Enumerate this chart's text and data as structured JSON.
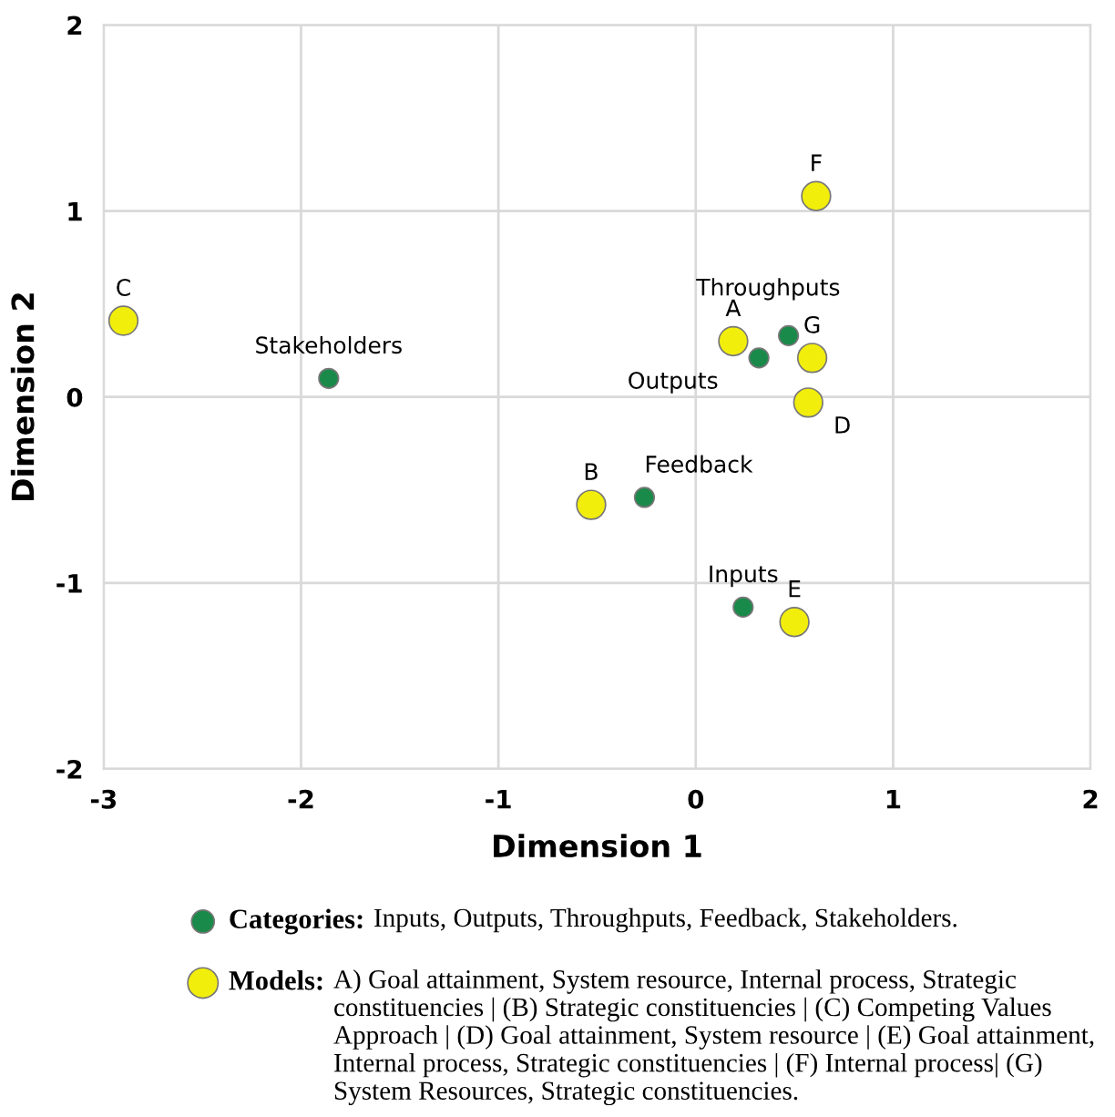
{
  "chart_data": {
    "type": "scatter",
    "xlabel": "Dimension 1",
    "ylabel": "Dimension 2",
    "xlim": [
      -3,
      2
    ],
    "ylim": [
      -2,
      2
    ],
    "xticks": [
      -3,
      -2,
      -1,
      0,
      1,
      2
    ],
    "yticks": [
      -2,
      -1,
      0,
      1,
      2
    ],
    "grid": true,
    "marker": "circle",
    "legend": "bottom",
    "series": [
      {
        "name": "Categories:",
        "color": "#1a8a4a",
        "x": [
          0.24,
          0.32,
          0.47,
          -0.26,
          -1.86
        ],
        "values": [
          -1.13,
          0.21,
          0.33,
          -0.54,
          0.1
        ]
      },
      {
        "name": "Models:",
        "color": "#f2ee0c",
        "x": [
          0.19,
          -0.53,
          -2.9,
          0.57,
          0.5,
          0.61,
          0.59
        ],
        "values": [
          0.3,
          -0.58,
          0.41,
          -0.03,
          -1.21,
          1.08,
          0.21
        ]
      }
    ],
    "annotations": [
      {
        "text": "Inputs",
        "x": 0.24,
        "y": -1.13
      },
      {
        "text": "Outputs",
        "x": 0.32,
        "y": 0.21
      },
      {
        "text": "Throughputs",
        "x": 0.47,
        "y": 0.33
      },
      {
        "text": "Feedback",
        "x": -0.26,
        "y": -0.54
      },
      {
        "text": "Stakeholders",
        "x": -1.86,
        "y": 0.1
      },
      {
        "text": "A",
        "x": 0.19,
        "y": 0.3
      },
      {
        "text": "B",
        "x": -0.53,
        "y": -0.58
      },
      {
        "text": "C",
        "x": -2.9,
        "y": 0.41
      },
      {
        "text": "D",
        "x": 0.57,
        "y": -0.03
      },
      {
        "text": "E",
        "x": 0.5,
        "y": -1.21
      },
      {
        "text": "F",
        "x": 0.61,
        "y": 1.08
      },
      {
        "text": "G",
        "x": 0.59,
        "y": 0.21
      },
      "Inputs, Outputs, Throughputs, Feedback, Stakeholders.",
      "A) Goal attainment, System resource, Internal process, Strategic constituencies | (B) Strategic constituencies | (C) Competing Values Approach | (D) Goal attainment, System resource | (E) Goal attainment, Internal process, Strategic constituencies | (F) Internal process| (G) System Resources, Strategic constituencies."
    ]
  }
}
